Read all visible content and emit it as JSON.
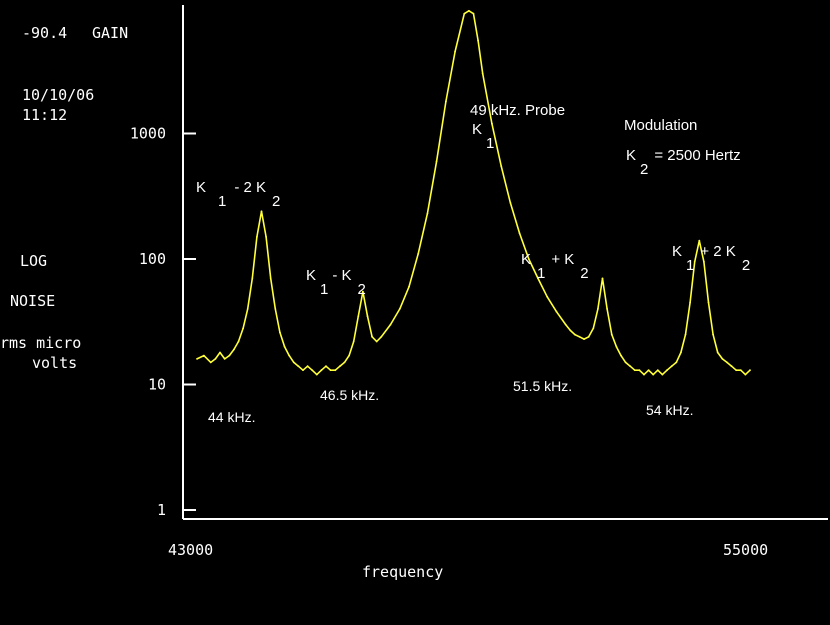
{
  "instrument": {
    "gain_value": "-90.4",
    "gain_label": "GAIN",
    "date": "10/10/06",
    "time": "11:12",
    "scale_mode": "LOG",
    "measurement": "NOISE",
    "units_line1": "rms micro",
    "units_line2": "volts"
  },
  "colors": {
    "background": "#000000",
    "trace": "#ffff3a",
    "axis": "#ffffff",
    "text": "#ffffff"
  },
  "chart_data": {
    "type": "line",
    "xlabel": "frequency",
    "x_ticks": [
      "43000",
      "55000"
    ],
    "xlim": [
      43000,
      55000
    ],
    "ylim": [
      1,
      10000
    ],
    "y_scale": "log",
    "y_ticks": [
      "1",
      "10",
      "100",
      "1000"
    ],
    "grid": false,
    "series": [
      {
        "x": [
          43000,
          43150,
          43300,
          43400,
          43500,
          43600,
          43700,
          43800,
          43900,
          44000,
          44100,
          44200,
          44300,
          44400,
          44500,
          44600,
          44700,
          44800,
          44900,
          45000,
          45100,
          45200,
          45300,
          45400,
          45500,
          45600,
          45700,
          45800,
          45900,
          46000,
          46100,
          46200,
          46300,
          46400,
          46500,
          46600,
          46700,
          46800,
          46900,
          47000,
          47200,
          47400,
          47600,
          47800,
          48000,
          48200,
          48400,
          48600,
          48800,
          48900,
          49000,
          49100,
          49200,
          49400,
          49600,
          49800,
          50000,
          50200,
          50400,
          50600,
          50800,
          51000,
          51100,
          51200,
          51300,
          51400,
          51500,
          51600,
          51700,
          51800,
          51900,
          52000,
          52100,
          52200,
          52300,
          52400,
          52500,
          52600,
          52700,
          52800,
          52900,
          53000,
          53100,
          53200,
          53300,
          53400,
          53500,
          53600,
          53700,
          53800,
          53900,
          54000,
          54100,
          54200,
          54300,
          54400,
          54500,
          54600,
          54700,
          54800,
          54900,
          55000
        ],
        "values": [
          16,
          17,
          15,
          16,
          18,
          16,
          17,
          19,
          22,
          28,
          40,
          70,
          150,
          240,
          150,
          70,
          40,
          26,
          20,
          17,
          15,
          14,
          13,
          14,
          13,
          12,
          13,
          14,
          13,
          13,
          14,
          15,
          17,
          22,
          35,
          55,
          35,
          24,
          22,
          24,
          30,
          40,
          60,
          110,
          230,
          600,
          1800,
          4500,
          9000,
          9500,
          9000,
          5500,
          3000,
          1200,
          550,
          280,
          160,
          100,
          70,
          50,
          38,
          30,
          27,
          25,
          24,
          23,
          24,
          28,
          40,
          70,
          40,
          25,
          20,
          17,
          15,
          14,
          13,
          13,
          12,
          13,
          12,
          13,
          12,
          13,
          14,
          15,
          18,
          25,
          45,
          95,
          140,
          95,
          45,
          25,
          18,
          16,
          15,
          14,
          13,
          13,
          12,
          13
        ]
      }
    ],
    "annotations": [
      {
        "main": "K",
        "sub1": "1",
        "op": "- 2 K",
        "sub2": "2"
      },
      {
        "main": "K",
        "sub1": "1",
        "op": "- K",
        "sub2": "2"
      },
      {
        "main": "49 kHz. Probe"
      },
      {
        "main": "K",
        "sub1": "1"
      },
      {
        "main": "K",
        "sub1": "1",
        "op": "+ K",
        "sub2": "2"
      },
      {
        "main": "K",
        "sub1": "1",
        "op": "+ 2 K",
        "sub2": "2"
      },
      {
        "main": "Modulation"
      },
      {
        "main": "K",
        "sub1": "2",
        "op": "= 2500 Hertz"
      }
    ],
    "peak_labels": [
      "44 kHz.",
      "46.5 kHz.",
      "51.5 kHz.",
      "54 kHz."
    ]
  }
}
